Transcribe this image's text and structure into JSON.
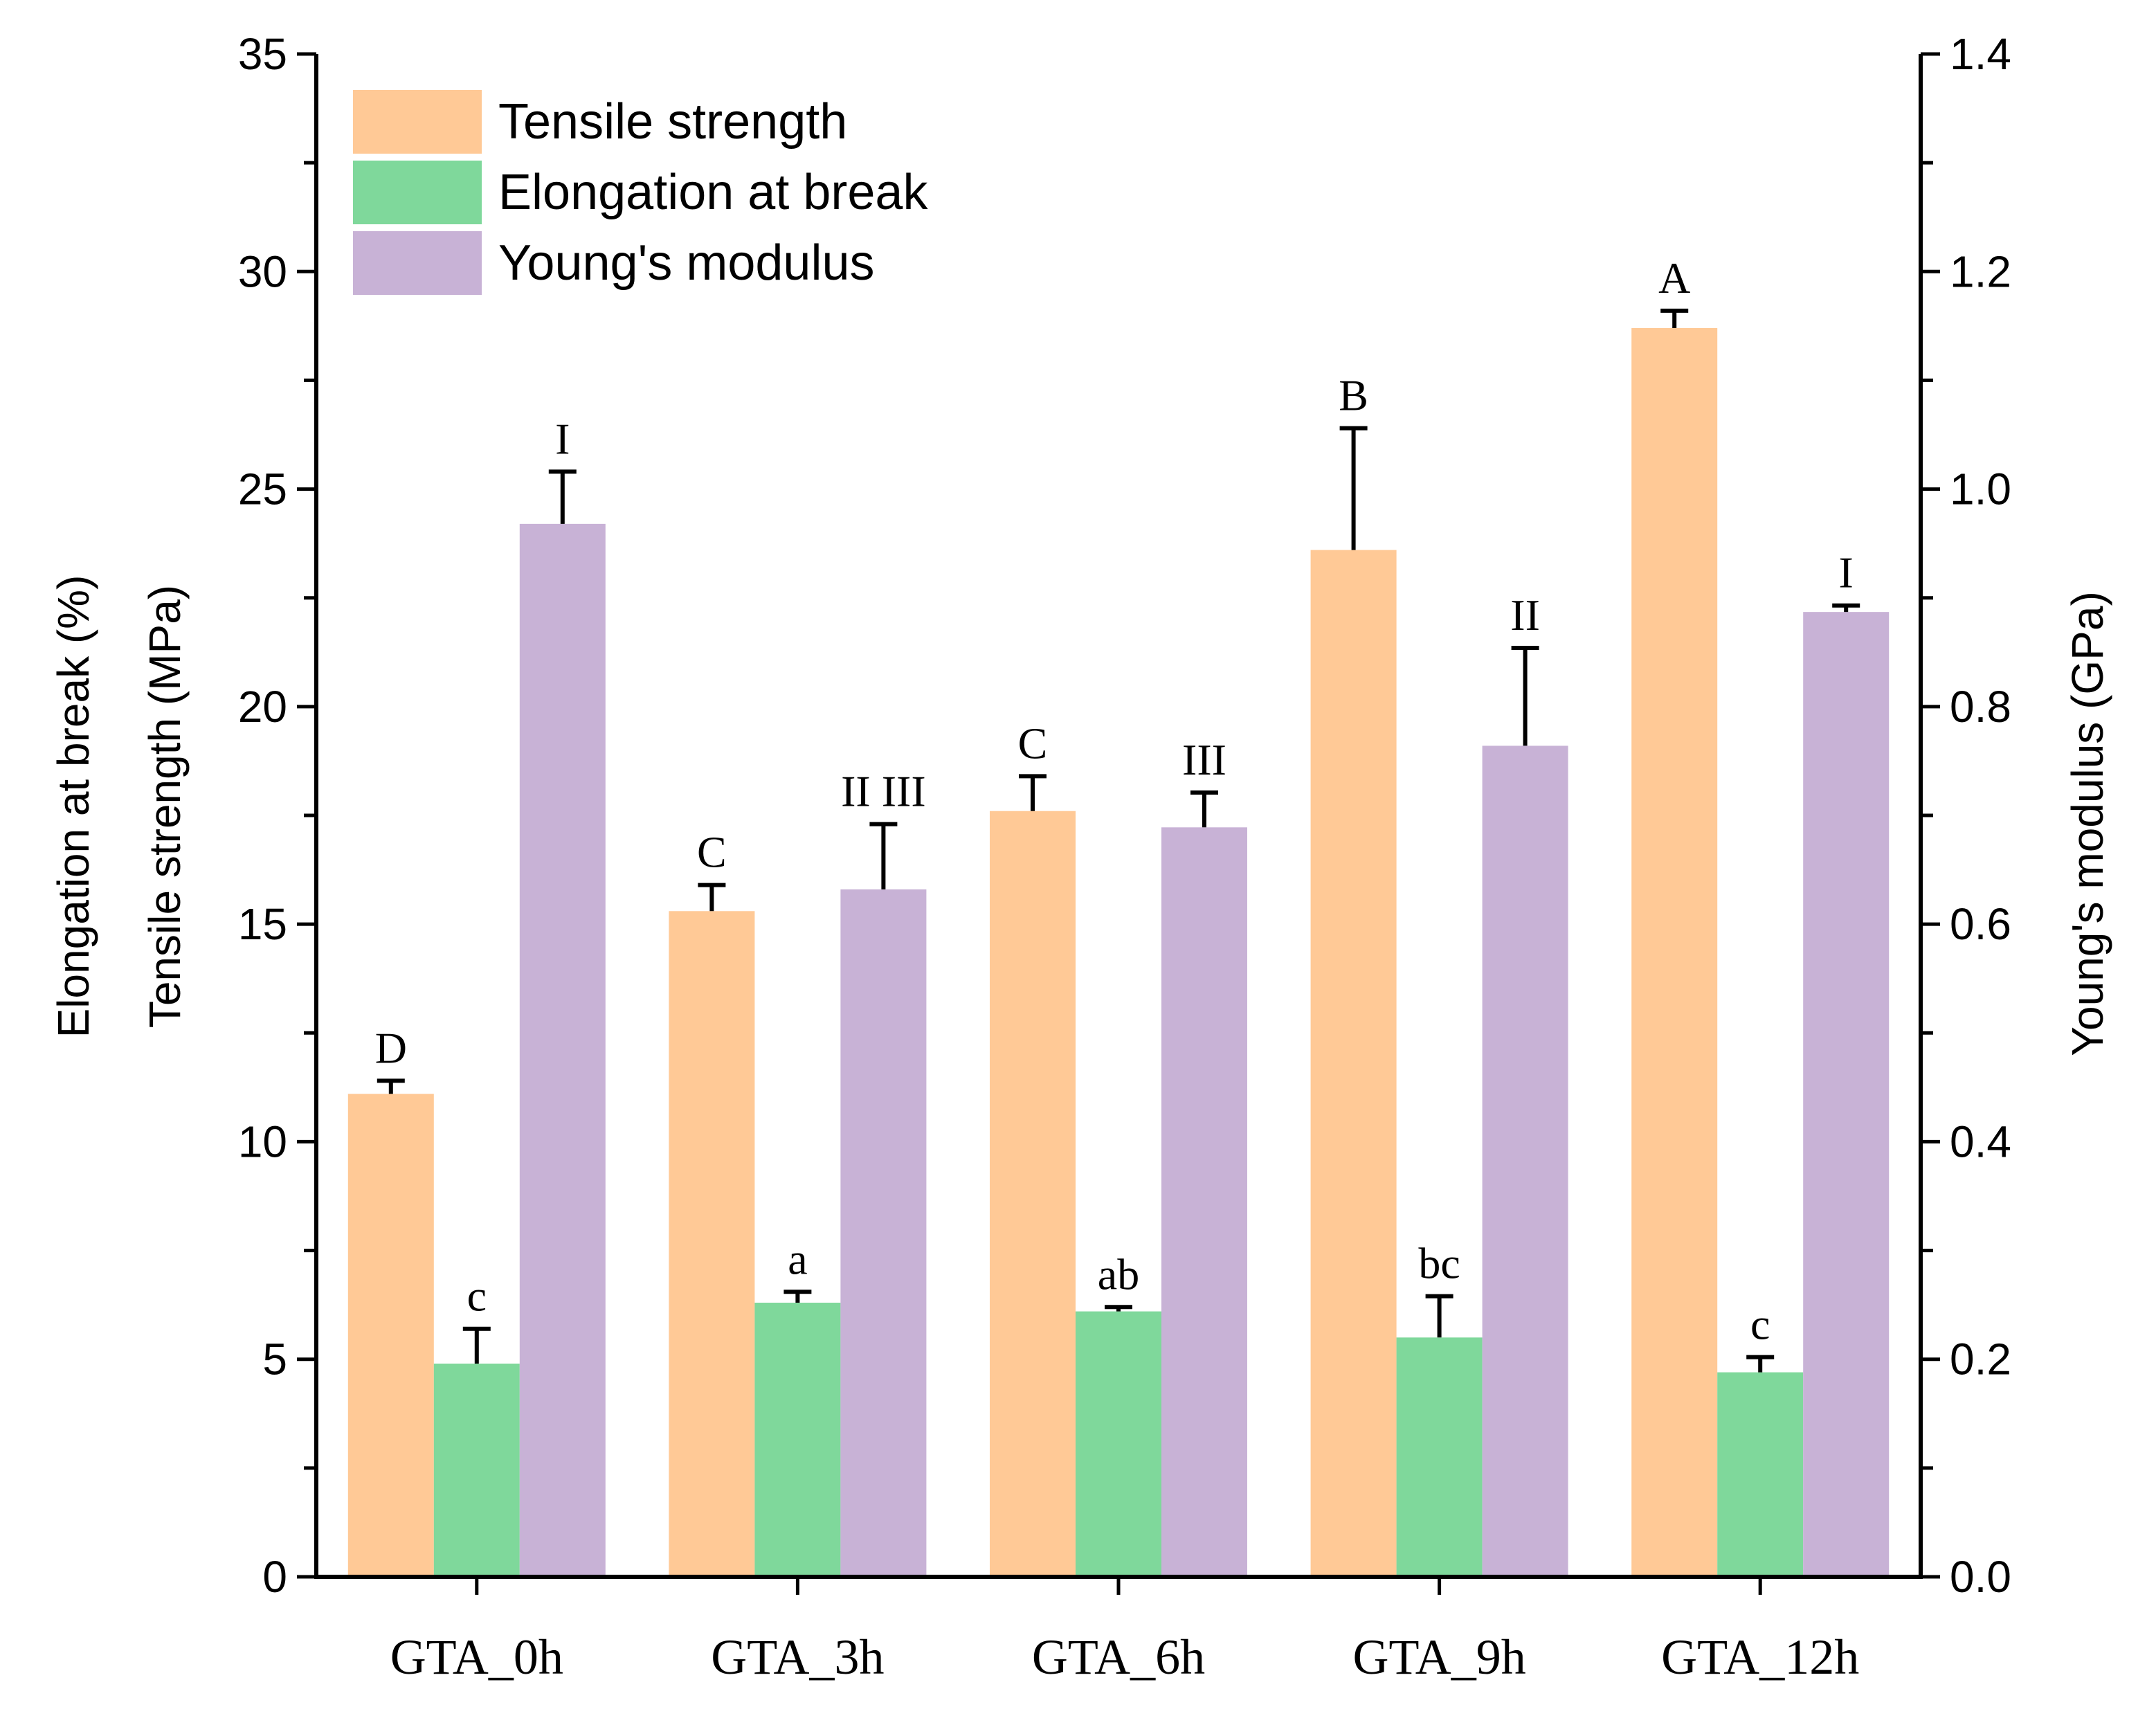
{
  "chart_data": {
    "type": "bar",
    "categories": [
      "GTA_0h",
      "GTA_3h",
      "GTA_6h",
      "GTA_9h",
      "GTA_12h"
    ],
    "series": [
      {
        "name": "Tensile strength",
        "axis": "left",
        "color": "#FFC996",
        "values": [
          11.1,
          15.3,
          17.6,
          23.6,
          28.7
        ],
        "errors": [
          0.3,
          0.6,
          0.8,
          2.8,
          0.4
        ],
        "letters": [
          "D",
          "C",
          "C",
          "B",
          "A"
        ]
      },
      {
        "name": "Elongation at break",
        "axis": "left",
        "color": "#7FD89B",
        "values": [
          4.9,
          6.3,
          6.1,
          5.5,
          4.7
        ],
        "errors": [
          0.8,
          0.25,
          0.1,
          0.95,
          0.35
        ],
        "letters": [
          "c",
          "a",
          "ab",
          "bc",
          "c"
        ]
      },
      {
        "name": "Young's modulus",
        "axis": "right",
        "color": "#C8B2D6",
        "values": [
          0.968,
          0.632,
          0.689,
          0.764,
          0.887
        ],
        "errors": [
          0.048,
          0.06,
          0.032,
          0.09,
          0.006
        ],
        "letters": [
          "I",
          "II III",
          "III",
          "II",
          "I"
        ]
      }
    ],
    "ylabel_left_lines": [
      "Elongation at break (%)",
      "Tensile strength (MPa)"
    ],
    "ylabel_right": "Young's modulus (GPa)",
    "ylim_left": [
      0,
      35
    ],
    "ylim_right": [
      0.0,
      1.4
    ],
    "yticks_left": [
      "0",
      "5",
      "10",
      "15",
      "20",
      "25",
      "30",
      "35"
    ],
    "yticks_right": [
      "0.0",
      "0.2",
      "0.4",
      "0.6",
      "0.8",
      "1.0",
      "1.2",
      "1.4"
    ],
    "legend_position": "top-left",
    "grid": false
  }
}
